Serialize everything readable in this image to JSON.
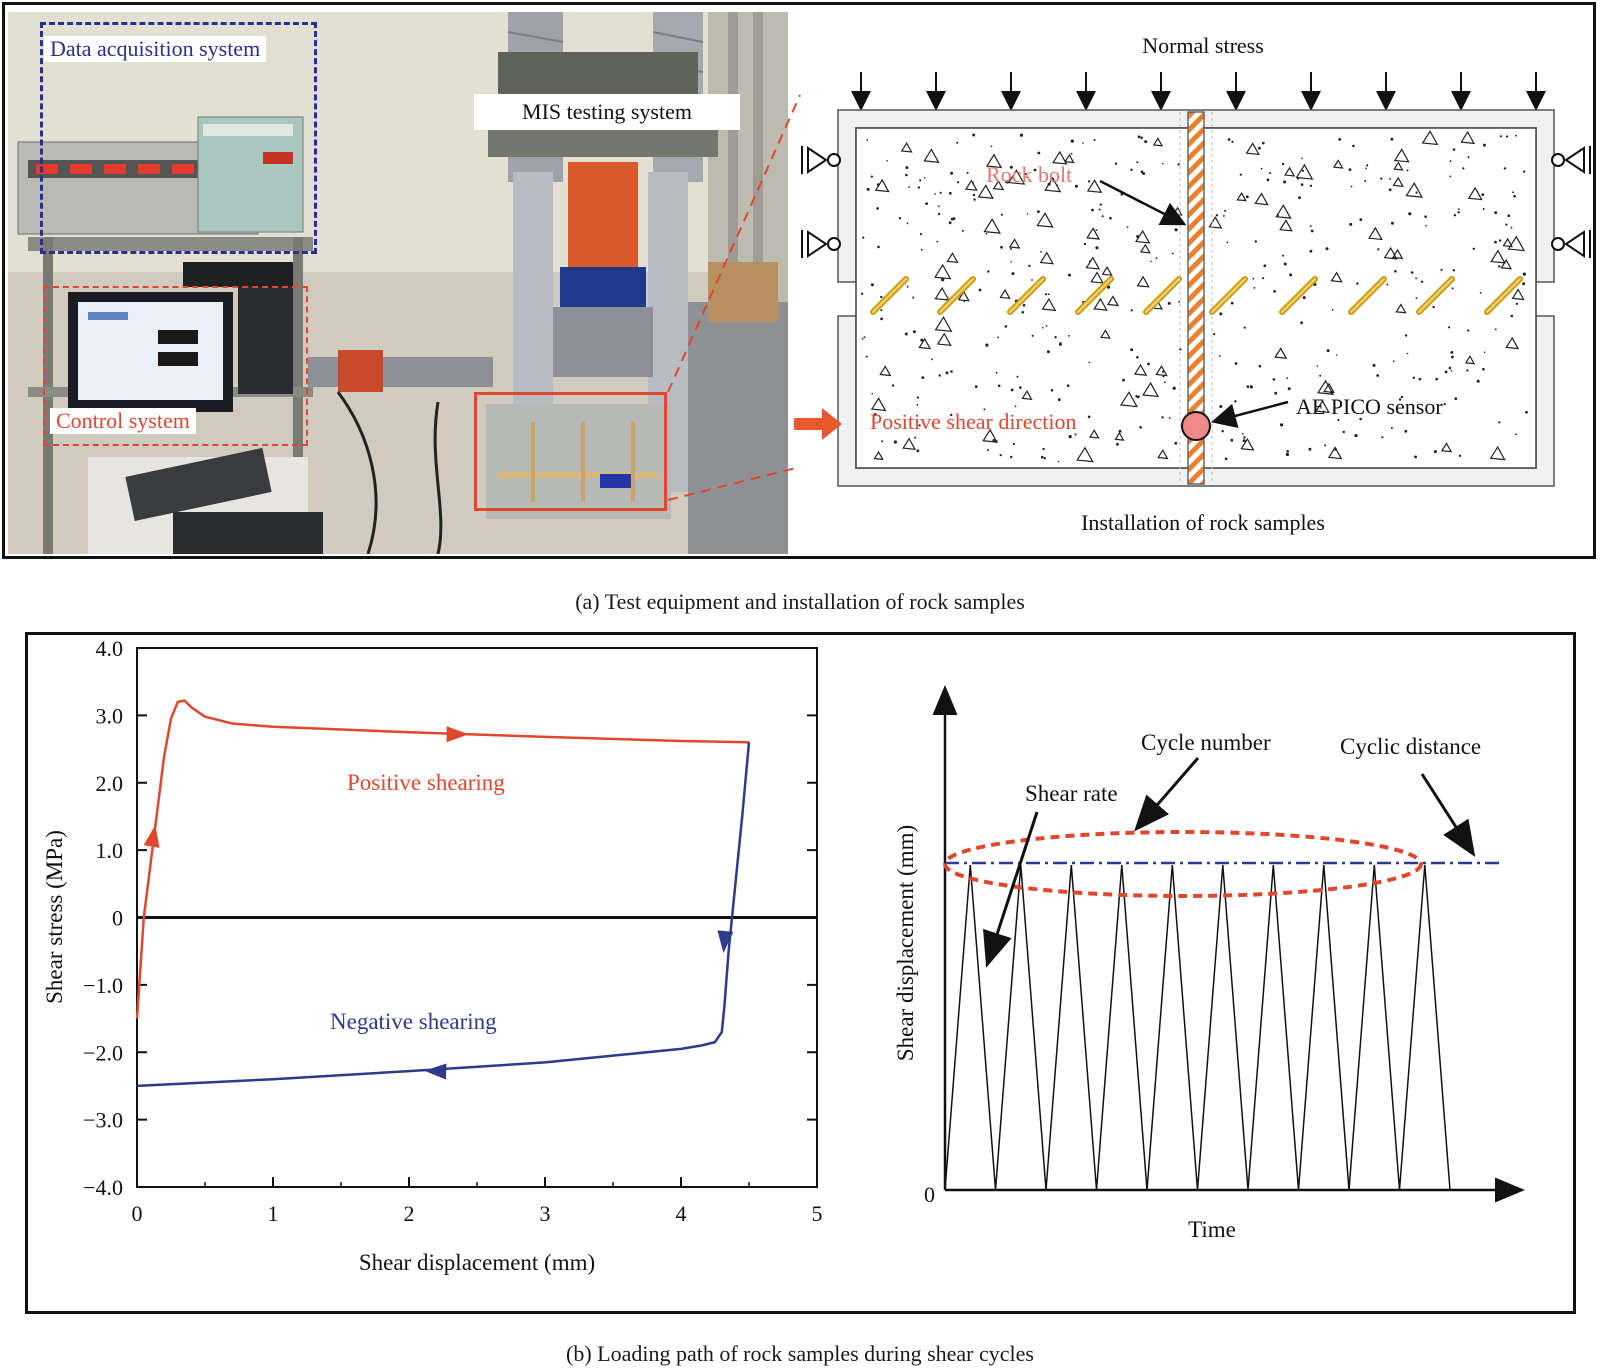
{
  "panel_a": {
    "photo": {
      "data_acquisition_label": "Data acquisition system",
      "mis_label": "MIS testing system",
      "control_label": "Control system"
    },
    "diagram": {
      "normal_stress_label": "Normal stress",
      "rock_bolt_label": "Rock bolt",
      "shear_direction_label": "Positive shear direction",
      "sensor_label": "AE PICO sensor",
      "installation_label": "Installation of rock samples"
    },
    "caption": "(a) Test equipment and installation of rock samples"
  },
  "panel_b": {
    "caption": "(b) Loading path of rock samples during shear cycles",
    "schematic": {
      "ylabel": "Shear displacement (mm)",
      "xlabel": "Time",
      "origin_label": "0",
      "cycle_number_label": "Cycle number",
      "cyclic_distance_label": "Cyclic distance",
      "shear_rate_label": "Shear rate",
      "cycles": 10
    }
  },
  "colors": {
    "red": "#e0482d",
    "blue": "#2e3a8c",
    "bolt_orange": "#e8822e",
    "joint_yellow": "#d7a41c"
  },
  "chart_data": {
    "type": "line",
    "xlabel": "Shear displacement (mm)",
    "ylabel": "Shear stress (MPa)",
    "xlim": [
      0,
      5
    ],
    "ylim": [
      -4.0,
      4.0
    ],
    "xticks": [
      "0",
      "1",
      "2",
      "3",
      "4",
      "5"
    ],
    "yticks": [
      "4.0",
      "3.0",
      "2.0",
      "1.0",
      "0",
      "-1.0",
      "-2.0",
      "-3.0",
      "-4.0"
    ],
    "series": [
      {
        "name": "Positive shearing",
        "color": "#e0482d",
        "x": [
          0.0,
          0.05,
          0.1,
          0.15,
          0.2,
          0.25,
          0.3,
          0.35,
          0.4,
          0.5,
          0.7,
          1.0,
          2.0,
          3.0,
          4.0,
          4.5
        ],
        "y": [
          -1.5,
          0.0,
          0.8,
          1.6,
          2.4,
          2.95,
          3.2,
          3.22,
          3.12,
          2.98,
          2.88,
          2.83,
          2.75,
          2.68,
          2.62,
          2.6
        ]
      },
      {
        "name": "Negative shearing",
        "color": "#2e3a8c",
        "x": [
          4.5,
          4.45,
          4.4,
          4.35,
          4.32,
          4.3,
          4.25,
          4.15,
          4.0,
          3.5,
          3.0,
          2.0,
          1.0,
          0.0
        ],
        "y": [
          2.6,
          1.5,
          0.5,
          -0.5,
          -1.3,
          -1.7,
          -1.85,
          -1.9,
          -1.95,
          -2.05,
          -2.15,
          -2.28,
          -2.4,
          -2.5
        ]
      }
    ],
    "annotations": [
      "Positive shearing",
      "Negative shearing"
    ]
  }
}
